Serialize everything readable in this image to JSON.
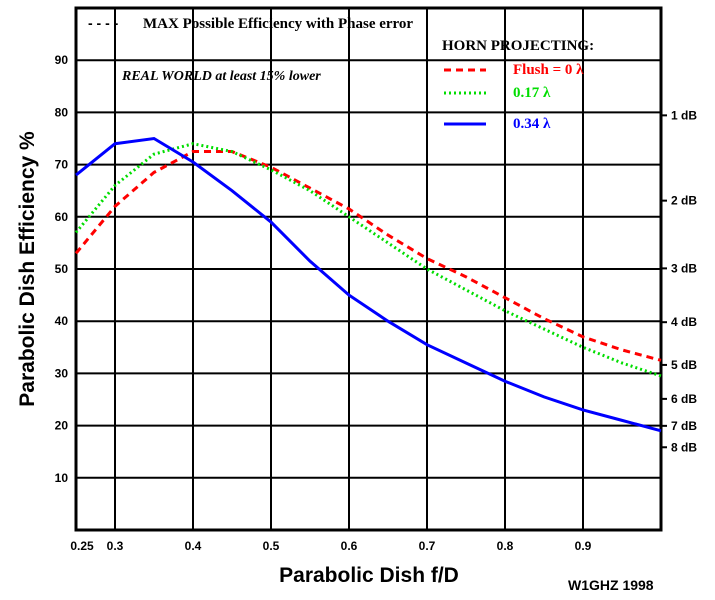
{
  "chart_data": {
    "type": "line",
    "xlabel": "Parabolic Dish f/D",
    "ylabel": "Parabolic Dish Efficiency %",
    "xlim": [
      0.25,
      1.0
    ],
    "ylim": [
      0,
      100
    ],
    "grid": true,
    "x_ticks": [
      "0.25",
      "0.3",
      "0.4",
      "0.5",
      "0.6",
      "0.7",
      "0.8",
      "0.9"
    ],
    "x_tick_values": [
      0.25,
      0.3,
      0.4,
      0.5,
      0.6,
      0.7,
      0.8,
      0.9
    ],
    "y_ticks": [
      "10",
      "20",
      "30",
      "40",
      "50",
      "60",
      "70",
      "80",
      "90"
    ],
    "y2_ticks": [
      {
        "label": "1 dB",
        "db": 1
      },
      {
        "label": "2 dB",
        "db": 2
      },
      {
        "label": "3 dB",
        "db": 3
      },
      {
        "label": "4 dB",
        "db": 4
      },
      {
        "label": "5 dB",
        "db": 5
      },
      {
        "label": "6 dB",
        "db": 6
      },
      {
        "label": "7 dB",
        "db": 7
      },
      {
        "label": "8 dB",
        "db": 8
      }
    ],
    "legend_note": "- - - -",
    "note_title": "MAX Possible Efficiency with Phase error",
    "note_real": "REAL WORLD at least 15% lower",
    "legend_title": "HORN PROJECTING:",
    "legend_placement": "top-right",
    "credit": "W1GHZ 1998",
    "x": [
      0.25,
      0.3,
      0.35,
      0.4,
      0.45,
      0.5,
      0.55,
      0.6,
      0.65,
      0.7,
      0.75,
      0.8,
      0.85,
      0.9,
      0.95,
      1.0
    ],
    "series": [
      {
        "name": "Flush = 0  λ",
        "color": "#ff0000",
        "style": "dashed",
        "values": [
          53,
          62,
          68.5,
          72.5,
          72.5,
          69.5,
          65.5,
          61.5,
          56.5,
          52,
          48.5,
          44.5,
          40.5,
          37,
          34.5,
          32.5
        ]
      },
      {
        "name": "0.17  λ",
        "color": "#00dd00",
        "style": "dotted",
        "values": [
          57,
          66,
          72,
          74,
          72.5,
          69,
          65,
          60,
          55,
          50,
          46,
          42,
          38.5,
          35,
          32,
          29.5
        ]
      },
      {
        "name": "0.34 λ",
        "color": "#0000ff",
        "style": "solid",
        "values": [
          68,
          74,
          75,
          70.5,
          65,
          59,
          51.5,
          45,
          40,
          35.5,
          32,
          28.5,
          25.5,
          23,
          21,
          19
        ]
      }
    ]
  }
}
